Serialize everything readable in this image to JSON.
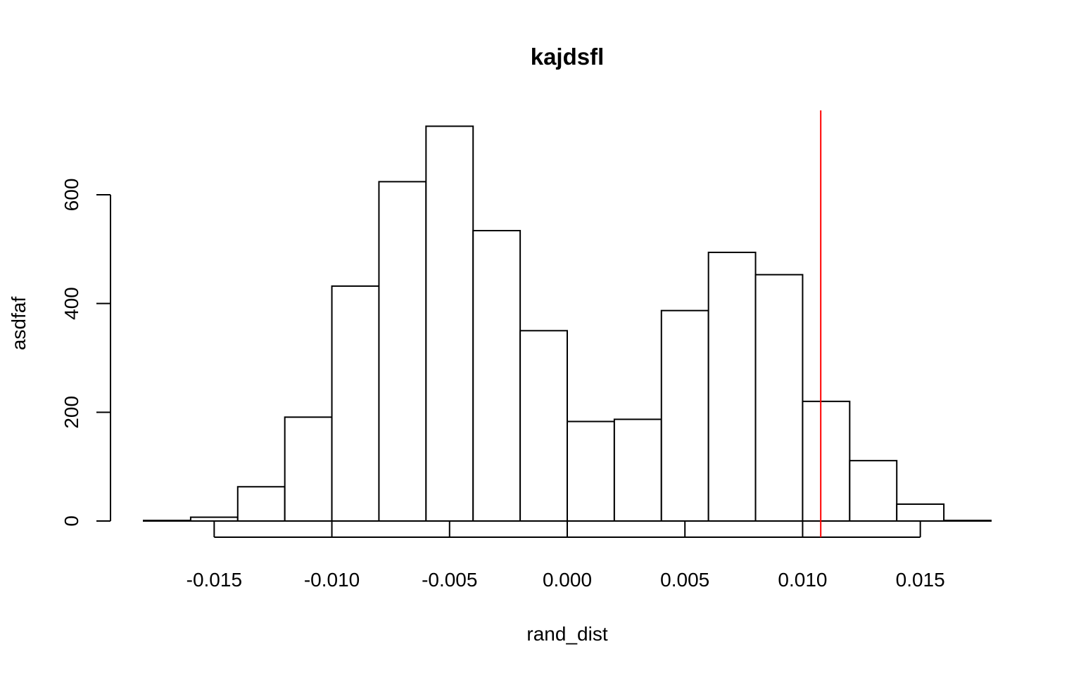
{
  "chart_data": {
    "type": "bar",
    "title": "kajdsfl",
    "xlabel": "rand_dist",
    "ylabel": "asdfaf",
    "xlim": [
      -0.018,
      0.018
    ],
    "ylim": [
      0,
      740
    ],
    "bin_width": 0.002,
    "bins": [
      {
        "x0": -0.018,
        "x1": -0.016,
        "count": 1
      },
      {
        "x0": -0.016,
        "x1": -0.014,
        "count": 7
      },
      {
        "x0": -0.014,
        "x1": -0.012,
        "count": 63
      },
      {
        "x0": -0.012,
        "x1": -0.01,
        "count": 191
      },
      {
        "x0": -0.01,
        "x1": -0.008,
        "count": 432
      },
      {
        "x0": -0.008,
        "x1": -0.006,
        "count": 624
      },
      {
        "x0": -0.006,
        "x1": -0.004,
        "count": 726
      },
      {
        "x0": -0.004,
        "x1": -0.002,
        "count": 534
      },
      {
        "x0": -0.002,
        "x1": 0.0,
        "count": 350
      },
      {
        "x0": 0.0,
        "x1": 0.002,
        "count": 183
      },
      {
        "x0": 0.002,
        "x1": 0.004,
        "count": 187
      },
      {
        "x0": 0.004,
        "x1": 0.006,
        "count": 387
      },
      {
        "x0": 0.006,
        "x1": 0.008,
        "count": 494
      },
      {
        "x0": 0.008,
        "x1": 0.01,
        "count": 453
      },
      {
        "x0": 0.01,
        "x1": 0.012,
        "count": 220
      },
      {
        "x0": 0.012,
        "x1": 0.014,
        "count": 111
      },
      {
        "x0": 0.014,
        "x1": 0.016,
        "count": 31
      },
      {
        "x0": 0.016,
        "x1": 0.018,
        "count": 1
      }
    ],
    "x_ticks": [
      -0.015,
      -0.01,
      -0.005,
      0.0,
      0.005,
      0.01,
      0.015
    ],
    "x_tick_labels": [
      "-0.015",
      "-0.010",
      "-0.005",
      "0.000",
      "0.005",
      "0.010",
      "0.015"
    ],
    "y_ticks": [
      0,
      200,
      400,
      600
    ],
    "y_tick_labels": [
      "0",
      "200",
      "400",
      "600"
    ],
    "reference_line": {
      "x": 0.01077,
      "color": "#ff0000"
    },
    "grid": false,
    "legend": "none"
  }
}
